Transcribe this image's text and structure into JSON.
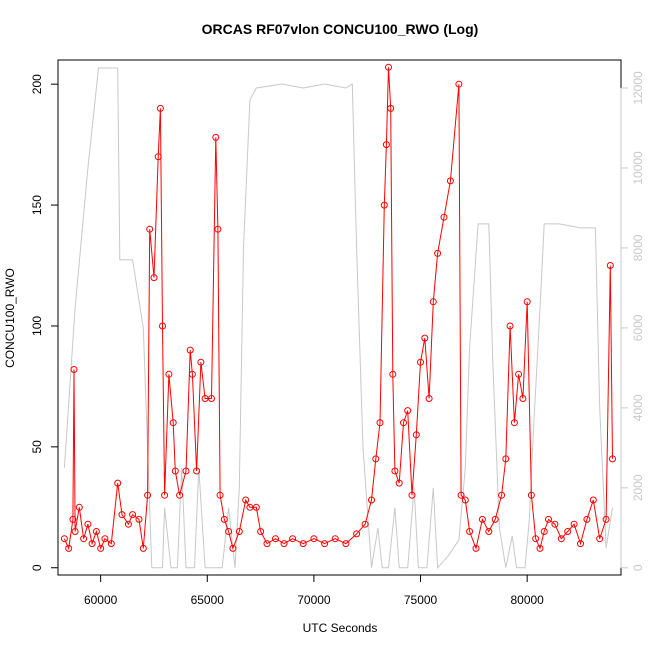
{
  "chart_data": {
    "type": "line",
    "title": "ORCAS RF07vlon CONCU100_RWO (Log)",
    "xlabel": "UTC Seconds",
    "ylabel": "CONCU100_RWO",
    "xlim": [
      58000,
      84400
    ],
    "ylim": [
      -3,
      210
    ],
    "y2lim": [
      -180,
      12700
    ],
    "x_ticks": [
      60000,
      65000,
      70000,
      75000,
      80000
    ],
    "x_tick_labels": [
      "60000",
      "65000",
      "70000",
      "75000",
      "80000"
    ],
    "y_ticks": [
      0,
      50,
      100,
      150,
      200
    ],
    "y_tick_labels": [
      "0",
      "50",
      "100",
      "150",
      "200"
    ],
    "y2_ticks": [
      0,
      2000,
      4000,
      6000,
      8000,
      10000,
      12000
    ],
    "y2_tick_labels": [
      "0",
      "2000",
      "4000",
      "6000",
      "8000",
      "10000",
      "12000"
    ],
    "grid": false,
    "series": [
      {
        "color": "#ff0000",
        "marker": "open-circle",
        "axis": "left",
        "points": [
          [
            58300,
            12
          ],
          [
            58500,
            8
          ],
          [
            58700,
            20
          ],
          [
            58750,
            82
          ],
          [
            58800,
            15
          ],
          [
            59000,
            25
          ],
          [
            59200,
            12
          ],
          [
            59400,
            18
          ],
          [
            59600,
            10
          ],
          [
            59800,
            15
          ],
          [
            60000,
            8
          ],
          [
            60200,
            12
          ],
          [
            60500,
            10
          ],
          [
            60800,
            35
          ],
          [
            61000,
            22
          ],
          [
            61300,
            18
          ],
          [
            61500,
            22
          ],
          [
            61800,
            20
          ],
          [
            62000,
            8
          ],
          [
            62200,
            30
          ],
          [
            62300,
            140
          ],
          [
            62500,
            120
          ],
          [
            62700,
            170
          ],
          [
            62800,
            190
          ],
          [
            62900,
            100
          ],
          [
            63000,
            30
          ],
          [
            63200,
            80
          ],
          [
            63400,
            60
          ],
          [
            63500,
            40
          ],
          [
            63700,
            30
          ],
          [
            64000,
            40
          ],
          [
            64200,
            90
          ],
          [
            64300,
            80
          ],
          [
            64500,
            40
          ],
          [
            64700,
            85
          ],
          [
            64900,
            70
          ],
          [
            65200,
            70
          ],
          [
            65400,
            178
          ],
          [
            65500,
            140
          ],
          [
            65600,
            30
          ],
          [
            65800,
            20
          ],
          [
            66000,
            15
          ],
          [
            66200,
            8
          ],
          [
            66500,
            15
          ],
          [
            66800,
            28
          ],
          [
            67000,
            25
          ],
          [
            67300,
            25
          ],
          [
            67500,
            15
          ],
          [
            67800,
            10
          ],
          [
            68200,
            12
          ],
          [
            68600,
            10
          ],
          [
            69000,
            12
          ],
          [
            69500,
            10
          ],
          [
            70000,
            12
          ],
          [
            70500,
            10
          ],
          [
            71000,
            12
          ],
          [
            71500,
            10
          ],
          [
            72000,
            14
          ],
          [
            72400,
            18
          ],
          [
            72700,
            28
          ],
          [
            72900,
            45
          ],
          [
            73100,
            60
          ],
          [
            73300,
            150
          ],
          [
            73400,
            175
          ],
          [
            73500,
            207
          ],
          [
            73600,
            190
          ],
          [
            73700,
            80
          ],
          [
            73800,
            40
          ],
          [
            74000,
            35
          ],
          [
            74200,
            60
          ],
          [
            74400,
            65
          ],
          [
            74600,
            30
          ],
          [
            74800,
            55
          ],
          [
            75000,
            85
          ],
          [
            75200,
            95
          ],
          [
            75400,
            70
          ],
          [
            75600,
            110
          ],
          [
            75800,
            130
          ],
          [
            76100,
            145
          ],
          [
            76400,
            160
          ],
          [
            76800,
            200
          ],
          [
            76900,
            30
          ],
          [
            77100,
            28
          ],
          [
            77300,
            15
          ],
          [
            77600,
            8
          ],
          [
            77900,
            20
          ],
          [
            78200,
            15
          ],
          [
            78500,
            20
          ],
          [
            78800,
            30
          ],
          [
            79000,
            45
          ],
          [
            79200,
            100
          ],
          [
            79400,
            60
          ],
          [
            79600,
            80
          ],
          [
            79800,
            70
          ],
          [
            80000,
            110
          ],
          [
            80200,
            30
          ],
          [
            80400,
            12
          ],
          [
            80600,
            8
          ],
          [
            80800,
            15
          ],
          [
            81000,
            20
          ],
          [
            81300,
            18
          ],
          [
            81600,
            12
          ],
          [
            81900,
            15
          ],
          [
            82200,
            18
          ],
          [
            82500,
            10
          ],
          [
            82800,
            20
          ],
          [
            83100,
            28
          ],
          [
            83400,
            12
          ],
          [
            83700,
            20
          ],
          [
            83900,
            125
          ],
          [
            84000,
            45
          ]
        ]
      },
      {
        "color": "#c8c8c8",
        "axis": "right",
        "points": [
          [
            58300,
            2500
          ],
          [
            58800,
            6500
          ],
          [
            59400,
            10000
          ],
          [
            59700,
            11500
          ],
          [
            59900,
            12500
          ],
          [
            60800,
            12500
          ],
          [
            60900,
            7700
          ],
          [
            61500,
            7700
          ],
          [
            62000,
            6000
          ],
          [
            62400,
            0
          ],
          [
            62900,
            0
          ],
          [
            63000,
            1500
          ],
          [
            63300,
            0
          ],
          [
            63600,
            0
          ],
          [
            63800,
            2500
          ],
          [
            64000,
            0
          ],
          [
            64400,
            0
          ],
          [
            64600,
            2500
          ],
          [
            64900,
            0
          ],
          [
            65700,
            0
          ],
          [
            66000,
            1500
          ],
          [
            66300,
            0
          ],
          [
            66500,
            2000
          ],
          [
            66700,
            8000
          ],
          [
            67000,
            11700
          ],
          [
            67300,
            12000
          ],
          [
            68500,
            12100
          ],
          [
            69500,
            12000
          ],
          [
            70500,
            12100
          ],
          [
            71500,
            12000
          ],
          [
            71800,
            12100
          ],
          [
            72000,
            8000
          ],
          [
            72300,
            3000
          ],
          [
            72700,
            0
          ],
          [
            73000,
            1000
          ],
          [
            73200,
            0
          ],
          [
            73500,
            0
          ],
          [
            73800,
            1500
          ],
          [
            74000,
            0
          ],
          [
            74400,
            0
          ],
          [
            74700,
            2000
          ],
          [
            74900,
            0
          ],
          [
            75300,
            0
          ],
          [
            75600,
            2000
          ],
          [
            75800,
            0
          ],
          [
            76300,
            300
          ],
          [
            76800,
            700
          ],
          [
            77100,
            2500
          ],
          [
            77300,
            5500
          ],
          [
            77700,
            8600
          ],
          [
            78200,
            8600
          ],
          [
            78400,
            5000
          ],
          [
            78700,
            1000
          ],
          [
            79000,
            0
          ],
          [
            79300,
            800
          ],
          [
            79500,
            0
          ],
          [
            79900,
            0
          ],
          [
            80100,
            1200
          ],
          [
            80300,
            3500
          ],
          [
            80600,
            6500
          ],
          [
            80800,
            8600
          ],
          [
            81500,
            8600
          ],
          [
            82500,
            8500
          ],
          [
            83200,
            8500
          ],
          [
            83400,
            4000
          ],
          [
            83700,
            500
          ],
          [
            84000,
            1500
          ]
        ]
      }
    ]
  }
}
